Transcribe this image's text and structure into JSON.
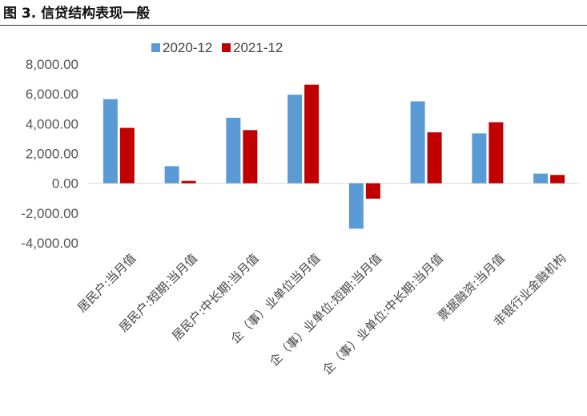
{
  "figure": {
    "title": "图 3. 信贷结构表现一般"
  },
  "chart_data": {
    "type": "bar",
    "title": "",
    "xlabel": "",
    "ylabel": "",
    "ylim": [
      -4000,
      8000
    ],
    "yticks": [
      "8,000.00",
      "6,000.00",
      "4,000.00",
      "2,000.00",
      "0.00",
      "-2,000.00",
      "-4,000.00"
    ],
    "grid": false,
    "legend": "top-left",
    "categories": [
      "居民户:当月值",
      "居民户:短期:当月值",
      "居民户:中长期:当月值",
      "企（事）业单位当月值",
      "企（事）业单位:短期:当月值",
      "企（事）业单位:中长期:当月值",
      "票据融资:当月值",
      "非银行业金融机构"
    ],
    "series": [
      {
        "name": "2020-12",
        "color": "#5b9bd5",
        "values": [
          5650,
          1150,
          4400,
          5950,
          -3050,
          5500,
          3350,
          650
        ]
      },
      {
        "name": "2021-12",
        "color": "#c00000",
        "values": [
          3720,
          160,
          3570,
          6620,
          -1030,
          3420,
          4100,
          560
        ]
      }
    ]
  }
}
